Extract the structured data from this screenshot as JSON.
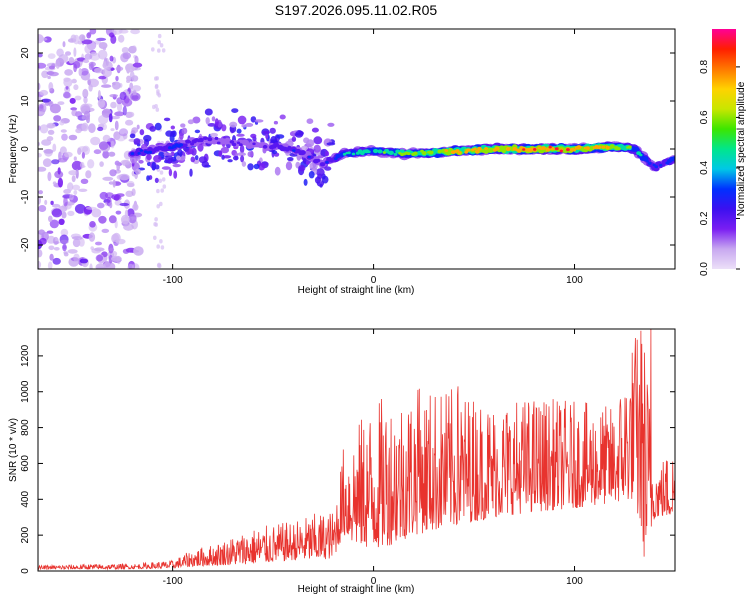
{
  "title": "S197.2026.095.11.02.R05",
  "chart_data": [
    {
      "type": "heatmap",
      "xlabel": "Height of straight line (km)",
      "ylabel": "Frequency (Hz)",
      "xlim": [
        -167,
        150
      ],
      "ylim": [
        -25,
        25
      ],
      "x_ticks": [
        -100,
        0,
        100
      ],
      "y_ticks": [
        -20,
        -10,
        0,
        10,
        20
      ],
      "colorbar": {
        "label": "Normalized spectral amplitude",
        "range": [
          0,
          0.95
        ],
        "ticks": [
          0.0,
          0.2,
          0.4,
          0.6,
          0.8
        ],
        "colors": [
          "#ece0f8",
          "#c8a8f0",
          "#7a1ef2",
          "#3c10f0",
          "#0030ff",
          "#00c8e6",
          "#00e68c",
          "#3ce600",
          "#c8e600",
          "#ffd200",
          "#ff7800",
          "#ff1e00",
          "#ff0096"
        ]
      },
      "ridge": {
        "x": [
          -120,
          -100,
          -85,
          -60,
          -40,
          -25,
          -15,
          0,
          20,
          40,
          60,
          80,
          100,
          120,
          130,
          140,
          150
        ],
        "freq": [
          -1,
          0.5,
          2,
          1,
          0,
          -3,
          -1,
          -0.5,
          -1,
          -0.5,
          0,
          0,
          0,
          0.5,
          0,
          -4,
          -2
        ],
        "peak_amplitude": [
          0.3,
          0.35,
          0.25,
          0.2,
          0.3,
          0.25,
          0.45,
          0.55,
          0.65,
          0.8,
          0.85,
          0.9,
          0.9,
          0.8,
          0.55,
          0.3,
          0.4
        ]
      },
      "noise_region": "x < -120 km: scattered low-amplitude blobs over full band"
    },
    {
      "type": "line",
      "xlabel": "Height of straight line (km)",
      "ylabel": "SNR (10 * v/v)",
      "xlim": [
        -167,
        150
      ],
      "ylim": [
        0,
        1350
      ],
      "x_ticks": [
        -100,
        0,
        100
      ],
      "y_ticks": [
        0,
        200,
        400,
        600,
        800,
        1000,
        1200
      ],
      "color": "#e8332e",
      "envelope": {
        "x": [
          -167,
          -140,
          -120,
          -100,
          -90,
          -80,
          -60,
          -40,
          -30,
          -20,
          -15,
          -10,
          0,
          10,
          20,
          40,
          60,
          80,
          100,
          120,
          130,
          135,
          140,
          150
        ],
        "lower": [
          10,
          10,
          12,
          15,
          25,
          30,
          40,
          60,
          60,
          70,
          200,
          150,
          120,
          150,
          200,
          250,
          300,
          330,
          350,
          380,
          400,
          50,
          300,
          300
        ],
        "upper": [
          30,
          40,
          40,
          60,
          120,
          150,
          240,
          280,
          320,
          340,
          700,
          800,
          950,
          1000,
          1030,
          1020,
          950,
          980,
          950,
          920,
          1350,
          1350,
          600,
          700
        ]
      },
      "peaks": [
        {
          "x": 133,
          "y": 1340
        },
        {
          "x": 138,
          "y": 1350
        },
        {
          "x": 42,
          "y": 1030
        },
        {
          "x": 22,
          "y": 1010
        },
        {
          "x": 6,
          "y": 760
        }
      ]
    }
  ]
}
